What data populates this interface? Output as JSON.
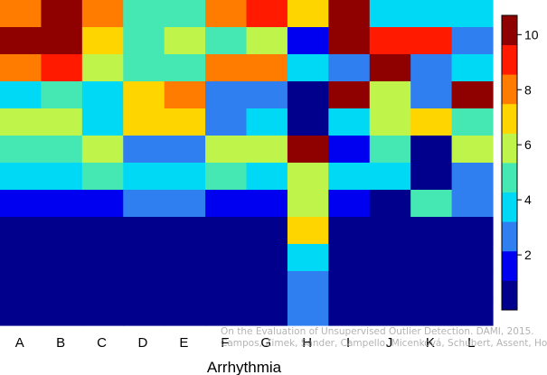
{
  "chart_data": {
    "type": "heatmap",
    "xlabel": "Arrhythmia",
    "ylabel": "",
    "categories": [
      "A",
      "B",
      "C",
      "D",
      "E",
      "F",
      "G",
      "H",
      "I",
      "J",
      "K",
      "L"
    ],
    "n_rows": 12,
    "row_order": "top-to-bottom",
    "values": [
      [
        8,
        10,
        8,
        5,
        5,
        8,
        9,
        7,
        10,
        4,
        4,
        4
      ],
      [
        10,
        10,
        7,
        5,
        6,
        5,
        6,
        2,
        10,
        9,
        9,
        3
      ],
      [
        8,
        9,
        6,
        5,
        5,
        8,
        8,
        4,
        3,
        10,
        3,
        4
      ],
      [
        4,
        5,
        4,
        7,
        8,
        3,
        3,
        1,
        10,
        6,
        3,
        10
      ],
      [
        6,
        6,
        4,
        7,
        7,
        3,
        4,
        1,
        4,
        6,
        7,
        5
      ],
      [
        5,
        5,
        6,
        3,
        3,
        6,
        6,
        10,
        2,
        5,
        1,
        6
      ],
      [
        4,
        4,
        5,
        4,
        4,
        5,
        4,
        6,
        4,
        4,
        1,
        3
      ],
      [
        2,
        2,
        2,
        3,
        3,
        2,
        2,
        6,
        2,
        1,
        5,
        3
      ],
      [
        1,
        1,
        1,
        1,
        1,
        1,
        1,
        7,
        1,
        1,
        1,
        1
      ],
      [
        1,
        1,
        1,
        1,
        1,
        1,
        1,
        4,
        1,
        1,
        1,
        1
      ],
      [
        1,
        1,
        1,
        1,
        1,
        1,
        1,
        3,
        1,
        1,
        1,
        1
      ],
      [
        1,
        1,
        1,
        1,
        1,
        1,
        1,
        3,
        1,
        1,
        1,
        1
      ]
    ],
    "colorbar": {
      "range": [
        0,
        10.7
      ],
      "ticks": [
        2,
        4,
        6,
        8,
        10
      ],
      "colors": [
        "#00008c",
        "#0000f0",
        "#2f7ff0",
        "#00d9f5",
        "#45e8b2",
        "#bff54a",
        "#ffd500",
        "#ff7c00",
        "#ff1a00",
        "#8f0000"
      ]
    },
    "grid": false,
    "legend": "colorbar right"
  },
  "watermark": {
    "line1": "On the Evaluation of Unsupervised Outlier Detection. DAMI, 2015.",
    "line2": "Campos, Zimek, Sander, Campello, Micenková, Schubert, Assent, Houle"
  }
}
